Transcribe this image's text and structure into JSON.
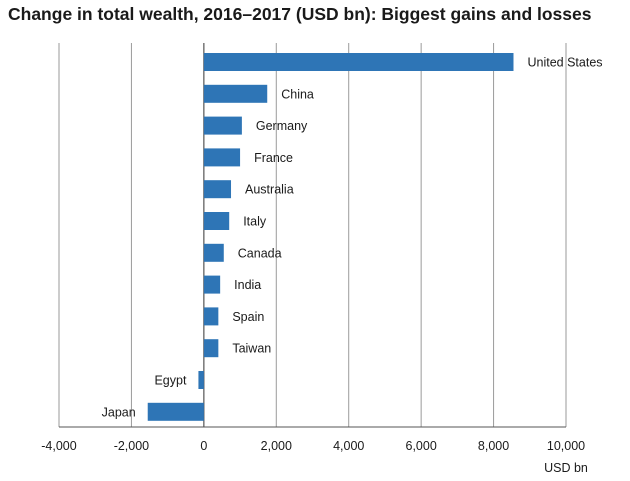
{
  "chart_data": {
    "type": "bar",
    "orientation": "horizontal",
    "title": "Change in total wealth, 2016–2017 (USD bn): Biggest gains and losses",
    "xlabel": "USD bn",
    "ylabel": "",
    "xlim": [
      -4000,
      10000
    ],
    "xticks": [
      -4000,
      -2000,
      0,
      2000,
      4000,
      6000,
      8000,
      10000
    ],
    "xtick_labels": [
      "-4,000",
      "-2,000",
      "0",
      "2,000",
      "4,000",
      "6,000",
      "8,000",
      "10,000"
    ],
    "grid": true,
    "legend": "none",
    "bar_color": "#2e75b6",
    "categories": [
      "United States",
      "China",
      "Germany",
      "France",
      "Australia",
      "Italy",
      "Canada",
      "India",
      "Spain",
      "Taiwan",
      "Egypt",
      "Japan"
    ],
    "values": [
      8550,
      1750,
      1050,
      1000,
      750,
      700,
      550,
      450,
      400,
      400,
      -150,
      -1550
    ]
  }
}
